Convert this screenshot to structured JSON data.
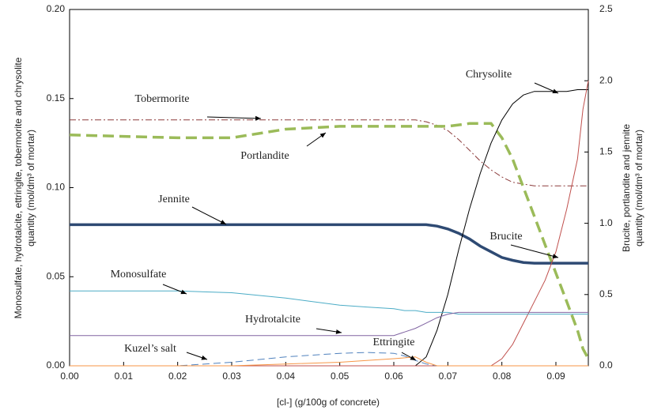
{
  "chart_data": {
    "type": "line",
    "x_label": "[cl-] (g/100g of concrete)",
    "y_label": [
      "Monosulfate, hydrotalcite, ettringite, tobermorite and chrysolite",
      "quantity (mol/dm³ of mortar)"
    ],
    "y2_label": [
      "Brucite, portlandite and jennite",
      "quantity (mol/dm³ of mortar)"
    ],
    "xlim": [
      0,
      0.096
    ],
    "ylim": [
      0,
      0.2
    ],
    "y2lim": [
      0,
      2.5
    ],
    "xticks": [
      {
        "value": 0,
        "label": "0.00"
      },
      {
        "value": 0.01,
        "label": "0.01"
      },
      {
        "value": 0.02,
        "label": "0.02"
      },
      {
        "value": 0.03,
        "label": "0.03"
      },
      {
        "value": 0.04,
        "label": "0.04"
      },
      {
        "value": 0.05,
        "label": "0.05"
      },
      {
        "value": 0.06,
        "label": "0.06"
      },
      {
        "value": 0.07,
        "label": "0.07"
      },
      {
        "value": 0.08,
        "label": "0.08"
      },
      {
        "value": 0.09,
        "label": "0.09"
      }
    ],
    "yticks": [
      {
        "value": 0,
        "label": "0.00"
      },
      {
        "value": 0.05,
        "label": "0.05"
      },
      {
        "value": 0.1,
        "label": "0.10"
      },
      {
        "value": 0.15,
        "label": "0.15"
      },
      {
        "value": 0.2,
        "label": "0.20"
      }
    ],
    "y2ticks": [
      {
        "value": 0,
        "label": "0.0"
      },
      {
        "value": 0.5,
        "label": "0.5"
      },
      {
        "value": 1,
        "label": "1.0"
      },
      {
        "value": 1.5,
        "label": "1.5"
      },
      {
        "value": 2,
        "label": "2.0"
      },
      {
        "value": 2.5,
        "label": "2.5"
      }
    ],
    "x": [
      0,
      0.01,
      0.02,
      0.03,
      0.04,
      0.05,
      0.055,
      0.06,
      0.062,
      0.064,
      0.066,
      0.068,
      0.07,
      0.072,
      0.074,
      0.076,
      0.078,
      0.08,
      0.082,
      0.084,
      0.086,
      0.088,
      0.09,
      0.092,
      0.094,
      0.095,
      0.096
    ],
    "series": [
      {
        "name": "Tobermorite",
        "color": "#8b3a3a",
        "style": "dash-dot",
        "weight": "thin",
        "values": [
          0.138,
          0.138,
          0.138,
          0.138,
          0.138,
          0.138,
          0.138,
          0.138,
          0.138,
          0.138,
          0.137,
          0.135,
          0.132,
          0.127,
          0.121,
          0.115,
          0.11,
          0.106,
          0.103,
          0.102,
          0.101,
          0.101,
          0.101,
          0.101,
          0.101,
          0.101,
          0.101
        ]
      },
      {
        "name": "Portlandite",
        "color": "#9bbb59",
        "style": "dashed",
        "weight": "thick",
        "axis": "y2",
        "values": [
          1.62,
          1.61,
          1.6,
          1.6,
          1.66,
          1.68,
          1.68,
          1.68,
          1.68,
          1.68,
          1.68,
          1.68,
          1.68,
          1.69,
          1.7,
          1.7,
          1.7,
          1.6,
          1.45,
          1.25,
          1.05,
          0.85,
          0.65,
          0.45,
          0.25,
          0.12,
          0.05
        ]
      },
      {
        "name": "Jennite",
        "color": "#2e4a73",
        "style": "solid",
        "weight": "thick",
        "axis": "y2",
        "values": [
          0.99,
          0.99,
          0.99,
          0.99,
          0.99,
          0.99,
          0.99,
          0.99,
          0.99,
          0.99,
          0.99,
          0.98,
          0.96,
          0.93,
          0.89,
          0.84,
          0.8,
          0.76,
          0.74,
          0.725,
          0.72,
          0.72,
          0.72,
          0.72,
          0.72,
          0.72,
          0.72
        ]
      },
      {
        "name": "Chrysolite",
        "color": "#000000",
        "style": "solid",
        "weight": "thin",
        "values": [
          0,
          0,
          0,
          0,
          0,
          0,
          0,
          0,
          0,
          0,
          0.005,
          0.02,
          0.04,
          0.065,
          0.088,
          0.108,
          0.125,
          0.138,
          0.147,
          0.152,
          0.154,
          0.154,
          0.154,
          0.154,
          0.155,
          0.155,
          0.155
        ]
      },
      {
        "name": "Brucite",
        "color": "#c0504d",
        "style": "solid",
        "weight": "thin",
        "axis": "y2",
        "values": [
          0,
          0,
          0,
          0,
          0,
          0,
          0,
          0,
          0,
          0,
          0,
          0,
          0,
          0,
          0,
          0,
          0,
          0.05,
          0.15,
          0.3,
          0.45,
          0.6,
          0.8,
          1.1,
          1.45,
          1.8,
          2.0
        ]
      },
      {
        "name": "Monosulfate",
        "color": "#4bacc6",
        "style": "solid",
        "weight": "thin",
        "values": [
          0.042,
          0.042,
          0.042,
          0.041,
          0.038,
          0.034,
          0.033,
          0.032,
          0.031,
          0.031,
          0.03,
          0.03,
          0.03,
          0.029,
          0.029,
          0.029,
          0.029,
          0.029,
          0.029,
          0.029,
          0.029,
          0.029,
          0.029,
          0.029,
          0.029,
          0.029,
          0.029
        ]
      },
      {
        "name": "Hydrotalcite",
        "color": "#8064a2",
        "style": "solid",
        "weight": "thin",
        "values": [
          0.017,
          0.017,
          0.017,
          0.017,
          0.017,
          0.017,
          0.017,
          0.017,
          0.019,
          0.021,
          0.024,
          0.027,
          0.029,
          0.03,
          0.03,
          0.03,
          0.03,
          0.03,
          0.03,
          0.03,
          0.03,
          0.03,
          0.03,
          0.03,
          0.03,
          0.03,
          0.03
        ]
      },
      {
        "name": "Kuzel’s salt",
        "color": "#4f81bd",
        "style": "dashed",
        "weight": "thin",
        "values": [
          0,
          0,
          0,
          0.002,
          0.005,
          0.007,
          0.0075,
          0.007,
          0.0055,
          0.003,
          0.001,
          0,
          0,
          0,
          0,
          0,
          0,
          0,
          0,
          0,
          0,
          0,
          0,
          0,
          0,
          0,
          0
        ]
      },
      {
        "name": "Ettringite",
        "color": "#f79646",
        "style": "solid",
        "weight": "thin",
        "values": [
          0,
          0,
          0,
          0,
          0.001,
          0.002,
          0.003,
          0.004,
          0.0045,
          0.005,
          0.002,
          0,
          0,
          0,
          0,
          0,
          0,
          0,
          0,
          0,
          0,
          0,
          0,
          0,
          0,
          0,
          0
        ]
      }
    ]
  }
}
